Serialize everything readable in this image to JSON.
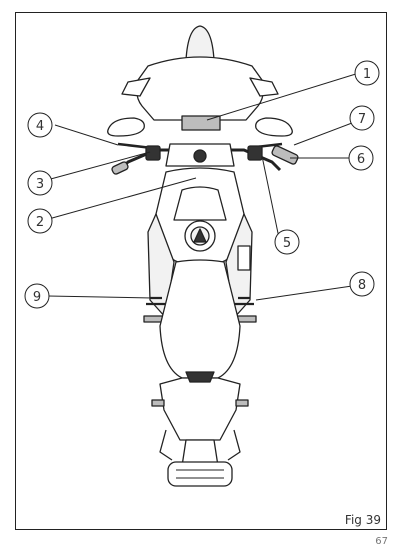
{
  "figure": {
    "label": "Fig 39",
    "page_number": "67"
  },
  "callouts": [
    {
      "id": "1",
      "text": "1"
    },
    {
      "id": "2",
      "text": "2"
    },
    {
      "id": "3",
      "text": "3"
    },
    {
      "id": "4",
      "text": "4"
    },
    {
      "id": "5",
      "text": "5"
    },
    {
      "id": "6",
      "text": "6"
    },
    {
      "id": "7",
      "text": "7"
    },
    {
      "id": "8",
      "text": "8"
    },
    {
      "id": "9",
      "text": "9"
    }
  ],
  "colors": {
    "line": "#222222",
    "fill_light": "#f2f2f2",
    "fill_mid": "#bdbdbd",
    "fill_dark": "#333333"
  }
}
